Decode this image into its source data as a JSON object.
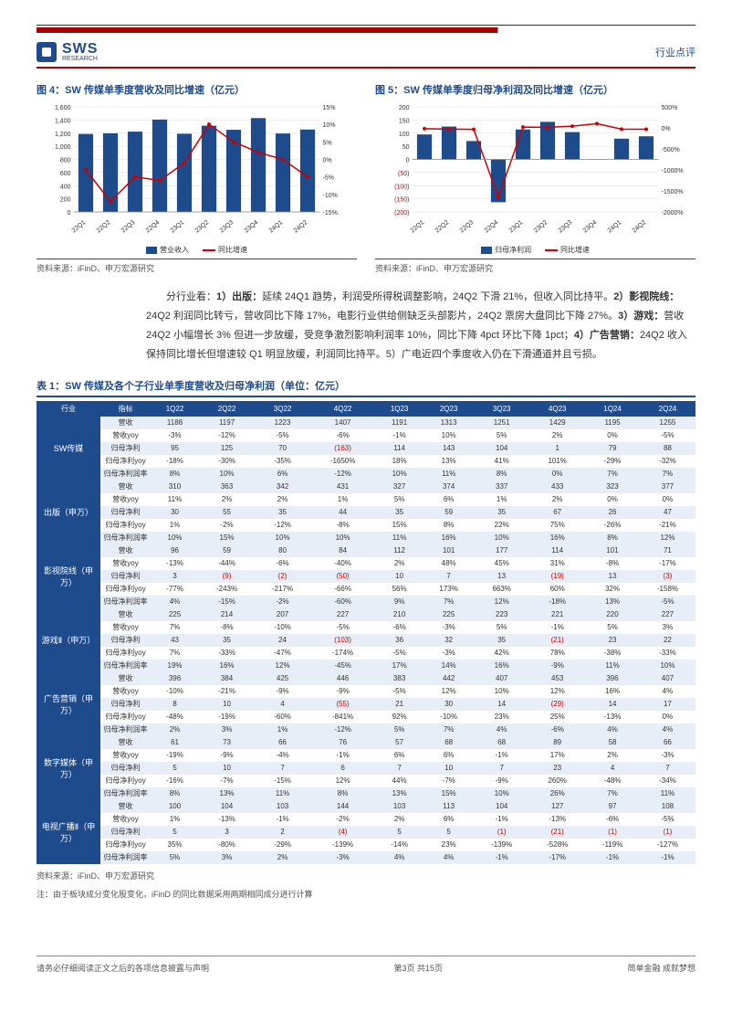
{
  "header": {
    "logo_text": "SWS",
    "logo_sub": "RESEARCH",
    "tag": "行业点评"
  },
  "chart4": {
    "title": "图 4：SW 传媒单季度营收及同比增速（亿元）",
    "type": "bar+line",
    "categories": [
      "22Q1",
      "22Q2",
      "22Q3",
      "22Q4",
      "23Q1",
      "23Q2",
      "23Q3",
      "23Q4",
      "24Q1",
      "24Q2"
    ],
    "bars": [
      1188,
      1197,
      1223,
      1407,
      1191,
      1313,
      1251,
      1429,
      1195,
      1255
    ],
    "line": [
      -3,
      -12,
      -5,
      -6,
      -1,
      10,
      5,
      2,
      0,
      -5
    ],
    "yleft": {
      "min": 0,
      "max": 1600,
      "step": 200
    },
    "yright": {
      "min": -15,
      "max": 15,
      "step": 5,
      "suffix": "%"
    },
    "bar_color": "#1e4b8c",
    "line_color": "#c00",
    "legend_bar": "营业收入",
    "legend_line": "同比增速",
    "source": "资料来源：iFinD、申万宏源研究"
  },
  "chart5": {
    "title": "图 5：SW 传媒单季度归母净利润及同比增速（亿元）",
    "type": "bar+line",
    "categories": [
      "22Q1",
      "22Q2",
      "22Q3",
      "22Q4",
      "23Q1",
      "23Q2",
      "23Q3",
      "23Q4",
      "24Q1",
      "24Q2"
    ],
    "bars": [
      95,
      125,
      70,
      -163,
      114,
      143,
      104,
      1,
      79,
      88
    ],
    "line": [
      -18,
      -30,
      -35,
      -1650,
      18,
      13,
      41,
      101,
      -29,
      -32
    ],
    "yleft": {
      "min": -200,
      "max": 200,
      "step": 50,
      "neg_labels": [
        "(50)",
        "(100)",
        "(150)",
        "(200)"
      ]
    },
    "yright": {
      "min": -2000,
      "max": 500,
      "step": 500,
      "suffix": "%"
    },
    "bar_color": "#1e4b8c",
    "line_color": "#c00",
    "legend_bar": "归母净利润",
    "legend_line": "同比增速",
    "source": "资料来源：iFinD、申万宏源研究"
  },
  "body_para": "分行业看：1）出版：延续 24Q1 趋势，利润受所得税调整影响，24Q2 下滑 21%，但收入同比持平。2）影视院线：24Q2 利润同比转亏，营收同比下降 17%，电影行业供给侧缺乏头部影片，24Q2 票房大盘同比下降 27%。3）游戏：营收 24Q2 小幅增长 3% 但进一步放缓，受竞争激烈影响利润率 10%，同比下降 4pct 环比下降 1pct；4）广告营销：24Q2 收入保持同比增长但增速较 Q1 明显放缓，利润同比持平。5）广电近四个季度收入仍在下滑通道并且亏损。",
  "table": {
    "title": "表 1：SW 传媒及各个子行业单季度营收及归母净利润（单位：亿元）",
    "headers": [
      "行业",
      "指标",
      "1Q22",
      "2Q22",
      "3Q22",
      "4Q22",
      "1Q23",
      "2Q23",
      "3Q23",
      "4Q23",
      "1Q24",
      "2Q24"
    ],
    "metrics": [
      "营收",
      "营收yoy",
      "归母净利",
      "归母净利yoy",
      "归母净利润率"
    ],
    "sectors": [
      {
        "name": "SW传媒",
        "rows": [
          [
            "1188",
            "1197",
            "1223",
            "1407",
            "1191",
            "1313",
            "1251",
            "1429",
            "1195",
            "1255"
          ],
          [
            "-3%",
            "-12%",
            "-5%",
            "-6%",
            "-1%",
            "10%",
            "5%",
            "2%",
            "0%",
            "-5%"
          ],
          [
            "95",
            "125",
            "70",
            "(163)",
            "114",
            "143",
            "104",
            "1",
            "79",
            "88"
          ],
          [
            "-18%",
            "-30%",
            "-35%",
            "-1650%",
            "18%",
            "13%",
            "41%",
            "101%",
            "-29%",
            "-32%"
          ],
          [
            "8%",
            "10%",
            "6%",
            "-12%",
            "10%",
            "11%",
            "8%",
            "0%",
            "7%",
            "7%"
          ]
        ]
      },
      {
        "name": "出版（申万）",
        "rows": [
          [
            "310",
            "363",
            "342",
            "431",
            "327",
            "374",
            "337",
            "433",
            "323",
            "377"
          ],
          [
            "11%",
            "2%",
            "2%",
            "1%",
            "5%",
            "6%",
            "1%",
            "2%",
            "0%",
            "0%"
          ],
          [
            "30",
            "55",
            "35",
            "44",
            "35",
            "59",
            "35",
            "67",
            "26",
            "47"
          ],
          [
            "1%",
            "-2%",
            "-12%",
            "-8%",
            "15%",
            "8%",
            "22%",
            "75%",
            "-26%",
            "-21%"
          ],
          [
            "10%",
            "15%",
            "10%",
            "10%",
            "11%",
            "16%",
            "10%",
            "16%",
            "8%",
            "12%"
          ]
        ]
      },
      {
        "name": "影视院线（申万）",
        "rows": [
          [
            "96",
            "59",
            "80",
            "84",
            "112",
            "101",
            "177",
            "114",
            "101",
            "71"
          ],
          [
            "-13%",
            "-44%",
            "-6%",
            "-40%",
            "2%",
            "48%",
            "45%",
            "31%",
            "-8%",
            "-17%"
          ],
          [
            "3",
            "(9)",
            "(2)",
            "(50)",
            "10",
            "7",
            "13",
            "(19)",
            "13",
            "(3)"
          ],
          [
            "-77%",
            "-243%",
            "-217%",
            "-66%",
            "56%",
            "173%",
            "663%",
            "60%",
            "32%",
            "-158%"
          ],
          [
            "4%",
            "-15%",
            "-2%",
            "-60%",
            "9%",
            "7%",
            "12%",
            "-18%",
            "13%",
            "-5%"
          ]
        ]
      },
      {
        "name": "游戏Ⅱ（申万）",
        "rows": [
          [
            "225",
            "214",
            "207",
            "227",
            "210",
            "225",
            "223",
            "221",
            "220",
            "227"
          ],
          [
            "7%",
            "-8%",
            "-10%",
            "-5%",
            "-6%",
            "-3%",
            "5%",
            "-1%",
            "5%",
            "3%"
          ],
          [
            "43",
            "35",
            "24",
            "(103)",
            "36",
            "32",
            "35",
            "(21)",
            "23",
            "22"
          ],
          [
            "7%",
            "-33%",
            "-47%",
            "-174%",
            "-5%",
            "-3%",
            "42%",
            "78%",
            "-38%",
            "-33%"
          ],
          [
            "19%",
            "16%",
            "12%",
            "-45%",
            "17%",
            "14%",
            "16%",
            "-9%",
            "11%",
            "10%"
          ]
        ]
      },
      {
        "name": "广告营销（申万）",
        "rows": [
          [
            "396",
            "384",
            "425",
            "446",
            "383",
            "442",
            "407",
            "453",
            "396",
            "407"
          ],
          [
            "-10%",
            "-21%",
            "-9%",
            "-9%",
            "-5%",
            "12%",
            "10%",
            "12%",
            "16%",
            "4%"
          ],
          [
            "8",
            "10",
            "4",
            "(55)",
            "21",
            "30",
            "14",
            "(29)",
            "14",
            "17"
          ],
          [
            "-48%",
            "-19%",
            "-60%",
            "-841%",
            "92%",
            "-10%",
            "23%",
            "25%",
            "-13%",
            "0%"
          ],
          [
            "2%",
            "3%",
            "1%",
            "-12%",
            "5%",
            "7%",
            "4%",
            "-6%",
            "4%",
            "4%"
          ]
        ]
      },
      {
        "name": "数字媒体（申万）",
        "rows": [
          [
            "61",
            "73",
            "66",
            "76",
            "57",
            "68",
            "68",
            "89",
            "58",
            "66"
          ],
          [
            "-19%",
            "-9%",
            "-4%",
            "-1%",
            "6%",
            "6%",
            "-1%",
            "17%",
            "2%",
            "-3%"
          ],
          [
            "5",
            "10",
            "7",
            "6",
            "7",
            "10",
            "7",
            "23",
            "4",
            "7"
          ],
          [
            "-16%",
            "-7%",
            "-15%",
            "12%",
            "44%",
            "-7%",
            "-9%",
            "260%",
            "-48%",
            "-34%"
          ],
          [
            "8%",
            "13%",
            "11%",
            "8%",
            "13%",
            "15%",
            "10%",
            "26%",
            "7%",
            "11%"
          ]
        ]
      },
      {
        "name": "电视广播Ⅱ（申万）",
        "rows": [
          [
            "100",
            "104",
            "103",
            "144",
            "103",
            "113",
            "104",
            "127",
            "97",
            "108"
          ],
          [
            "1%",
            "-13%",
            "-1%",
            "-2%",
            "2%",
            "6%",
            "-1%",
            "-13%",
            "-6%",
            "-5%"
          ],
          [
            "5",
            "3",
            "2",
            "(4)",
            "5",
            "5",
            "(1)",
            "(21)",
            "(1)",
            "(1)"
          ],
          [
            "35%",
            "-80%",
            "-29%",
            "-139%",
            "-14%",
            "23%",
            "-139%",
            "-528%",
            "-119%",
            "-127%"
          ],
          [
            "5%",
            "3%",
            "2%",
            "-3%",
            "4%",
            "4%",
            "-1%",
            "-17%",
            "-1%",
            "-1%"
          ]
        ]
      }
    ],
    "source": "资料来源：iFinD、申万宏源研究",
    "note": "注：由于板块成分变化股变化，iFinD 的同比数据采用两期相同成分进行计算"
  },
  "footer": {
    "left": "请务必仔细阅读正文之后的各项信息披露与声明",
    "center": "第3页 共15页",
    "right": "简单金融 成就梦想"
  }
}
